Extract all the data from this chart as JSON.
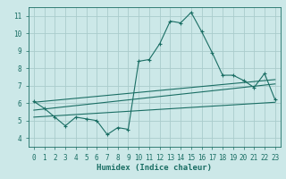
{
  "title": "",
  "xlabel": "Humidex (Indice chaleur)",
  "ylabel": "",
  "bg_color": "#cce8e8",
  "grid_color": "#aacccc",
  "line_color": "#1a6e64",
  "xlim": [
    -0.5,
    23.5
  ],
  "ylim": [
    3.5,
    11.5
  ],
  "xticks": [
    0,
    1,
    2,
    3,
    4,
    5,
    6,
    7,
    8,
    9,
    10,
    11,
    12,
    13,
    14,
    15,
    16,
    17,
    18,
    19,
    20,
    21,
    22,
    23
  ],
  "yticks": [
    4,
    5,
    6,
    7,
    8,
    9,
    10,
    11
  ],
  "main_x": [
    0,
    1,
    2,
    3,
    4,
    5,
    6,
    7,
    8,
    9,
    10,
    11,
    12,
    13,
    14,
    15,
    16,
    17,
    18,
    19,
    20,
    21,
    22,
    23
  ],
  "main_y": [
    6.1,
    5.7,
    5.2,
    4.7,
    5.2,
    5.1,
    5.0,
    4.2,
    4.6,
    4.5,
    8.4,
    8.5,
    9.4,
    10.7,
    10.6,
    11.2,
    10.1,
    8.9,
    7.6,
    7.6,
    7.3,
    6.9,
    7.7,
    6.2
  ],
  "reg_line1_x": [
    0,
    23
  ],
  "reg_line1_y": [
    6.05,
    7.35
  ],
  "reg_line2_x": [
    0,
    23
  ],
  "reg_line2_y": [
    5.6,
    7.1
  ],
  "reg_line3_x": [
    0,
    23
  ],
  "reg_line3_y": [
    5.2,
    6.05
  ],
  "xlabel_fontsize": 6.5,
  "tick_fontsize": 5.5
}
